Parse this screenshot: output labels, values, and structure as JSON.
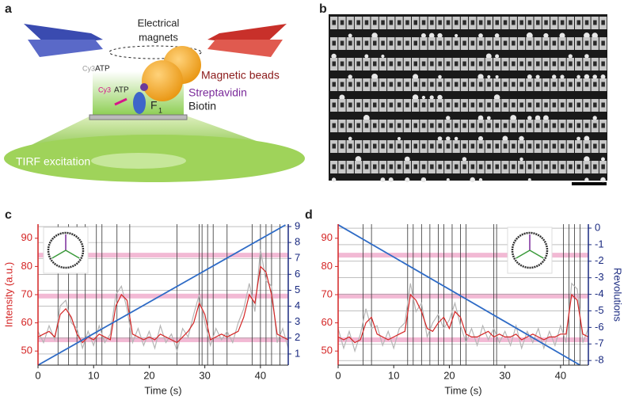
{
  "panel_a": {
    "label": "a",
    "electrical": "Electrical",
    "magnets": "magnets",
    "cy3_1": "Cy3",
    "atp_1": "ATP",
    "cy3_2": "Cy3",
    "atp_2": "ATP",
    "magnetic_beads": "Magnetic beads",
    "streptavidin": "Streptavidin",
    "biotin": "Biotin",
    "f1_base": "F",
    "f1_sub": "1",
    "tirf": "TIRF excitation"
  },
  "panel_b": {
    "label": "b"
  },
  "chart_data": [
    {
      "label": "c",
      "type": "line",
      "xlabel": "Time (s)",
      "ylabel": "Intensity (a.u.)",
      "xlim": [
        0,
        45
      ],
      "xticks": [
        0,
        10,
        20,
        30,
        40
      ],
      "ylim": [
        45,
        95
      ],
      "yticks": [
        50,
        60,
        70,
        80,
        90
      ],
      "y2lim": [
        0.3,
        9.15
      ],
      "y2ticks": [
        1,
        2,
        3,
        4,
        5,
        6,
        7,
        8,
        9
      ],
      "bands": [
        54,
        69.5,
        84
      ],
      "band_color": "#e77fb0",
      "vlines": [
        3.6,
        5.5,
        7,
        8.5,
        10.5,
        11.5,
        14.2,
        16.5,
        25,
        29,
        29.5,
        30.5,
        31.5,
        34,
        38.5,
        40,
        41,
        42,
        43.5
      ],
      "x": [
        0,
        1,
        2,
        3,
        4,
        5,
        6,
        7,
        8,
        9,
        10,
        11,
        12,
        13,
        14,
        15,
        16,
        17,
        18,
        19,
        20,
        21,
        22,
        23,
        24,
        25,
        26,
        27,
        28,
        29,
        30,
        31,
        32,
        33,
        34,
        35,
        36,
        37,
        38,
        39,
        40,
        41,
        42,
        43,
        44,
        45
      ],
      "series": [
        {
          "color": "#b5b5b5",
          "values": [
            57,
            53,
            59,
            54,
            66,
            68,
            60,
            58,
            51,
            57,
            52,
            59,
            53,
            56,
            70,
            73,
            65,
            53,
            58,
            52,
            57,
            51,
            59,
            53,
            56,
            50,
            58,
            55,
            63,
            70,
            60,
            52,
            58,
            54,
            57,
            53,
            60,
            65,
            74,
            64,
            86,
            75,
            73,
            53,
            58,
            51
          ]
        },
        {
          "color": "#d42424",
          "values": [
            55,
            56,
            57,
            55,
            63,
            65,
            62,
            56,
            53,
            55,
            54,
            56,
            55,
            54,
            66,
            70,
            68,
            56,
            55,
            54,
            55,
            54,
            56,
            55,
            54,
            53,
            55,
            57,
            60,
            67,
            63,
            54,
            55,
            56,
            55,
            56,
            57,
            62,
            70,
            67,
            80,
            78,
            70,
            56,
            55,
            54
          ]
        },
        {
          "color": "#2e6bc6",
          "axis": "y2",
          "x": [
            0,
            44.5
          ],
          "values": [
            0.3,
            9.1
          ]
        }
      ]
    },
    {
      "label": "d",
      "type": "line",
      "xlabel": "Time (s)",
      "y2label": "Revolutions",
      "xlim": [
        0,
        45
      ],
      "xticks": [
        0,
        10,
        20,
        30,
        40
      ],
      "ylim": [
        45,
        95
      ],
      "yticks": [
        50,
        60,
        70,
        80,
        90
      ],
      "y2lim": [
        -8.28,
        0.24
      ],
      "y2ticks": [
        0,
        -1,
        -2,
        -3,
        -4,
        -5,
        -6,
        -7,
        -8
      ],
      "bands": [
        54,
        69.5,
        84
      ],
      "band_color": "#e77fb0",
      "vlines": [
        4.5,
        6,
        12.5,
        13.5,
        15,
        16.5,
        18,
        19,
        20.5,
        22,
        23,
        28,
        28.5,
        40.5,
        41.5,
        42.5,
        43.5
      ],
      "x": [
        0,
        1,
        2,
        3,
        4,
        5,
        6,
        7,
        8,
        9,
        10,
        11,
        12,
        13,
        14,
        15,
        16,
        17,
        18,
        19,
        20,
        21,
        22,
        23,
        24,
        25,
        26,
        27,
        28,
        29,
        30,
        31,
        32,
        33,
        34,
        35,
        36,
        37,
        38,
        39,
        40,
        41,
        42,
        43,
        44,
        45
      ],
      "series": [
        {
          "color": "#b5b5b5",
          "values": [
            58,
            51,
            57,
            50,
            56,
            65,
            58,
            59,
            52,
            57,
            51,
            58,
            60,
            74,
            64,
            67,
            55,
            60,
            63,
            58,
            61,
            67,
            59,
            53,
            58,
            52,
            59,
            54,
            58,
            53,
            57,
            52,
            59,
            51,
            57,
            53,
            58,
            51,
            57,
            52,
            59,
            53,
            74,
            72,
            53,
            58
          ]
        },
        {
          "color": "#d42424",
          "values": [
            55,
            54,
            55,
            53,
            54,
            60,
            62,
            56,
            55,
            54,
            55,
            56,
            57,
            70,
            68,
            64,
            58,
            57,
            60,
            62,
            58,
            64,
            62,
            56,
            55,
            55,
            56,
            57,
            55,
            56,
            55,
            55,
            56,
            54,
            55,
            56,
            55,
            54,
            55,
            55,
            56,
            56,
            70,
            68,
            56,
            55
          ]
        },
        {
          "color": "#2e6bc6",
          "axis": "y2",
          "x": [
            0,
            43.5
          ],
          "values": [
            0.2,
            -8.28
          ]
        }
      ]
    }
  ]
}
